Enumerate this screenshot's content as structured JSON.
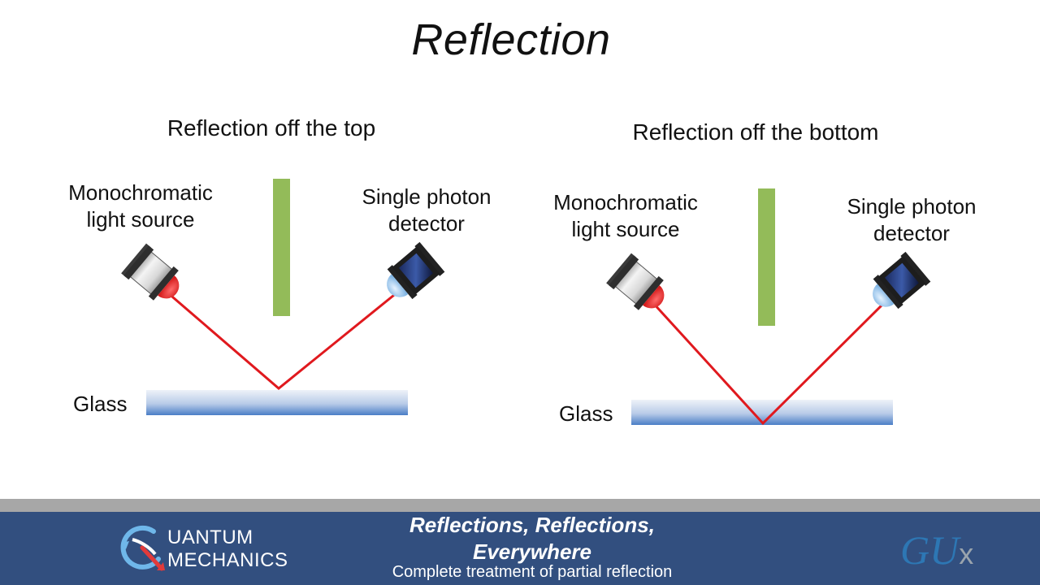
{
  "slide": {
    "title": "Reflection"
  },
  "panels": [
    {
      "title": "Reflection off the top",
      "source_label_1": "Monochromatic",
      "source_label_2": "light source",
      "detector_label_1": "Single photon",
      "detector_label_2": "detector",
      "glass_label": "Glass",
      "reflection_point": "top"
    },
    {
      "title": "Reflection off the bottom",
      "source_label_1": "Monochromatic",
      "source_label_2": "light source",
      "detector_label_1": "Single photon",
      "detector_label_2": "detector",
      "glass_label": "Glass",
      "reflection_point": "bottom"
    }
  ],
  "colors": {
    "beam": "#e0191e",
    "screen": "#93bb59",
    "glass_top": "#e9eef7",
    "glass_bottom": "#4f82c9",
    "footer_bg": "#324f7f",
    "footer_divider": "#a7a7a7"
  },
  "footer": {
    "course_line_1": "UANTUM",
    "course_line_2": "MECHANICS",
    "course_logo_icon": "q-logo-icon",
    "episode_title_line_1": "Reflections, Reflections,",
    "episode_title_line_2": "Everywhere",
    "episode_subtitle": "Complete treatment of partial reflection",
    "partner_logo_main": "GU",
    "partner_logo_suffix": "x"
  }
}
